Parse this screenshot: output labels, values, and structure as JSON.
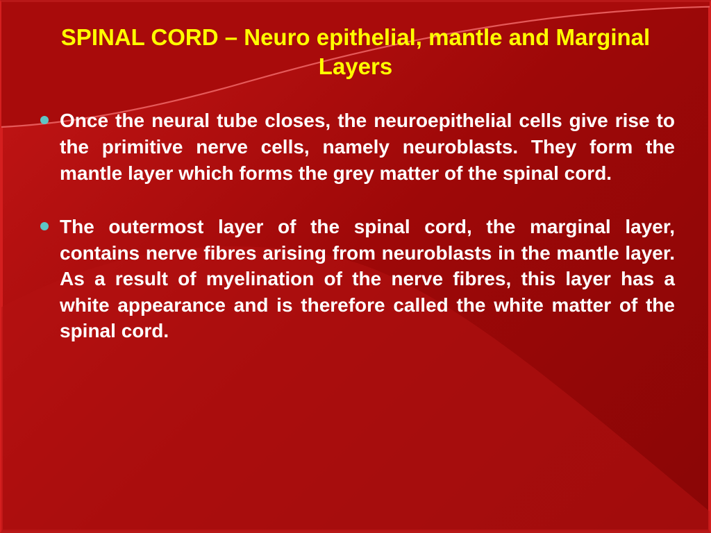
{
  "colors": {
    "background_gradient_start": "#c41616",
    "background_gradient_mid": "#9e0808",
    "background_gradient_end": "#8a0606",
    "border": "#d41f1f",
    "swoosh_top_fill": "#a80b0b",
    "swoosh_top_stroke": "#e55a5a",
    "swoosh_bottom_fill": "#b51313",
    "title_color": "#ffff00",
    "body_text_color": "#ffffff",
    "bullet_color": "#5ec5c5"
  },
  "typography": {
    "title_fontsize": 33,
    "title_weight": "bold",
    "body_fontsize": 28,
    "body_weight": "bold",
    "font_family": "Arial"
  },
  "title": "SPINAL CORD – Neuro epithelial, mantle and Marginal Layers",
  "bullets": [
    {
      "text": "Once the neural tube closes, the neuroepithelial cells give rise to the primitive nerve cells, namely neuroblasts. They form the mantle layer which forms the grey matter of the spinal cord."
    },
    {
      "text": "The outermost layer of the spinal cord, the marginal layer, contains nerve fibres arising from neuroblasts in the mantle layer. As a result of myelination of the nerve fibres, this layer has a white appearance and is therefore called the white matter of the spinal cord."
    }
  ]
}
